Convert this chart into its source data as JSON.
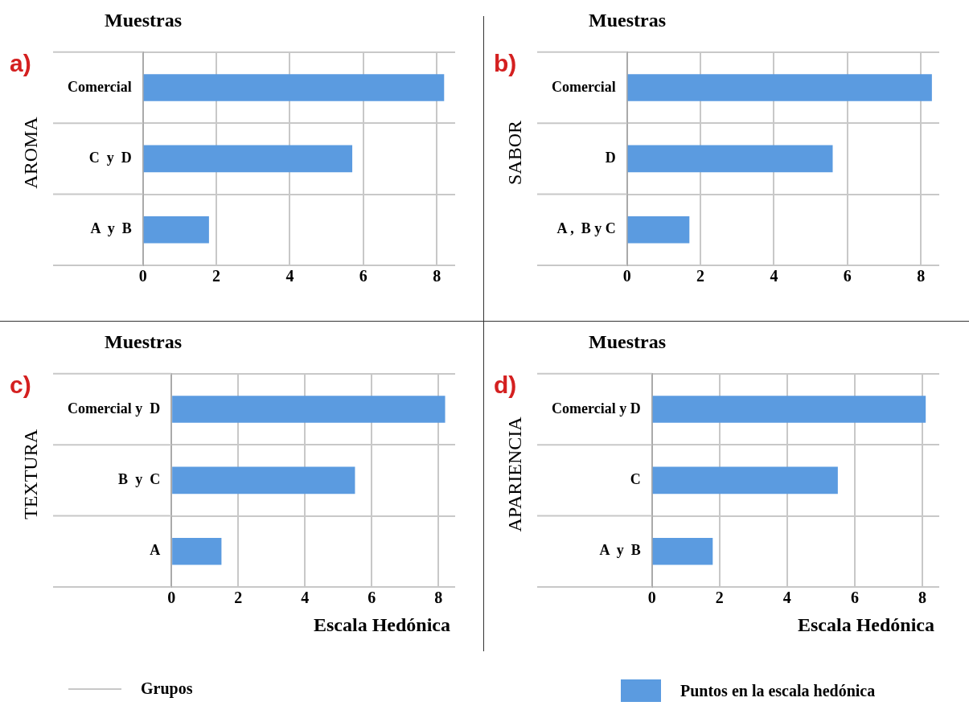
{
  "chart_data": [
    {
      "type": "bar",
      "orientation": "horizontal",
      "title": "a)",
      "subtitle": "AROMA",
      "ylabel": "Muestras",
      "categories": [
        "Comercial",
        "C  y  D",
        "A  y  B"
      ],
      "series": [
        {
          "color": "#5b9be0",
          "values": [
            8.2,
            5.7,
            1.8
          ]
        }
      ],
      "xlim": [
        0,
        8.5
      ],
      "xticks": [
        0,
        2,
        4,
        6,
        8
      ],
      "grid": true
    },
    {
      "type": "bar",
      "orientation": "horizontal",
      "title": "b)",
      "subtitle": "SABOR",
      "ylabel": "Muestras",
      "categories": [
        "Comercial",
        "D",
        "A ,  B y C"
      ],
      "series": [
        {
          "color": "#5b9be0",
          "values": [
            8.3,
            5.6,
            1.7
          ]
        }
      ],
      "xlim": [
        0,
        8.5
      ],
      "xticks": [
        0,
        2,
        4,
        6,
        8
      ],
      "grid": true
    },
    {
      "type": "bar",
      "orientation": "horizontal",
      "title": "c)",
      "subtitle": "TEXTURA",
      "ylabel": "Muestras",
      "xlabel": "Escala Hedónica",
      "categories": [
        "Comercial y  D",
        "B  y  C",
        "A"
      ],
      "series": [
        {
          "color": "#5b9be0",
          "values": [
            8.2,
            5.5,
            1.5
          ]
        }
      ],
      "xlim": [
        0,
        8.5
      ],
      "xticks": [
        0,
        2,
        4,
        6,
        8
      ],
      "grid": true,
      "annotations": [
        "Grupos"
      ]
    },
    {
      "type": "bar",
      "orientation": "horizontal",
      "title": "d)",
      "subtitle": "APARIENCIA",
      "ylabel": "Muestras",
      "xlabel": "Escala Hedónica",
      "categories": [
        "Comercial y D",
        "C",
        "A  y  B"
      ],
      "series": [
        {
          "name": "Puntos en la escala hedónica",
          "color": "#5b9be0",
          "values": [
            8.1,
            5.5,
            1.8
          ]
        }
      ],
      "xlim": [
        0,
        8.5
      ],
      "xticks": [
        0,
        2,
        4,
        6,
        8
      ],
      "grid": true,
      "legend": "bottom"
    }
  ]
}
